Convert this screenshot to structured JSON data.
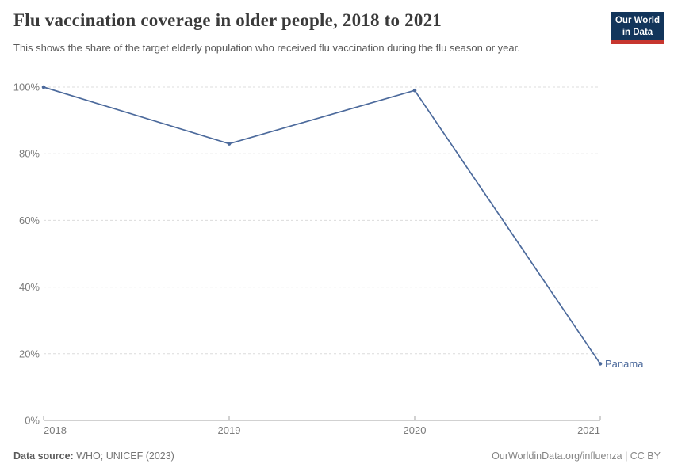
{
  "header": {
    "title": "Flu vaccination coverage in older people, 2018 to 2021",
    "subtitle": "This shows the share of the target elderly population who received flu vaccination during the flu season or year.",
    "logo": {
      "line1": "Our World",
      "line2": "in Data",
      "bg_color": "#12355b",
      "accent_color": "#c7362f"
    }
  },
  "chart_data": {
    "type": "line",
    "title": "Flu vaccination coverage in older people, 2018 to 2021",
    "x": [
      2018,
      2019,
      2020,
      2021
    ],
    "series": [
      {
        "name": "Panama",
        "values": [
          100,
          83,
          99,
          17
        ],
        "color": "#4C6A9C"
      }
    ],
    "xlabel": "",
    "ylabel": "",
    "ylim": [
      0,
      100
    ],
    "yticks": [
      0,
      20,
      40,
      60,
      80,
      100
    ],
    "y_tick_suffix": "%",
    "grid": true,
    "gridline_color": "#dcdcdc",
    "axis_color": "#a3a3a3",
    "tick_label_color": "#7b7b7b",
    "legend_position": "end-of-line-label"
  },
  "footer": {
    "source_label": "Data source:",
    "source_value": " WHO; UNICEF (2023)",
    "citation": "OurWorldinData.org/influenza | CC BY"
  }
}
